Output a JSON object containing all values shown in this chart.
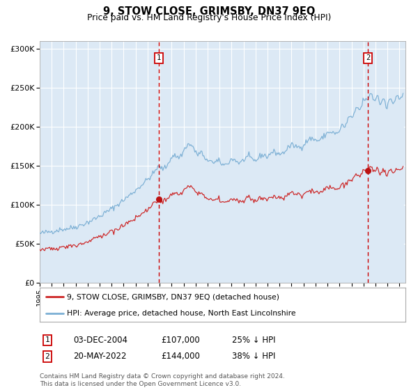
{
  "title": "9, STOW CLOSE, GRIMSBY, DN37 9EQ",
  "subtitle": "Price paid vs. HM Land Registry's House Price Index (HPI)",
  "background_color": "#ffffff",
  "plot_bg_color": "#dce9f5",
  "grid_color": "#ffffff",
  "hpi_color": "#7bafd4",
  "price_color": "#cc2222",
  "marker_color": "#bb1111",
  "vline_color": "#cc0000",
  "ylim": [
    0,
    310000
  ],
  "yticks": [
    0,
    50000,
    100000,
    150000,
    200000,
    250000,
    300000
  ],
  "ytick_labels": [
    "£0",
    "£50K",
    "£100K",
    "£150K",
    "£200K",
    "£250K",
    "£300K"
  ],
  "sale1_date_num": 2004.92,
  "sale1_price": 107000,
  "sale2_date_num": 2022.38,
  "sale2_price": 144000,
  "legend_line1": "9, STOW CLOSE, GRIMSBY, DN37 9EQ (detached house)",
  "legend_line2": "HPI: Average price, detached house, North East Lincolnshire",
  "table_row1_num": "1",
  "table_row1_date": "03-DEC-2004",
  "table_row1_price": "£107,000",
  "table_row1_hpi": "25% ↓ HPI",
  "table_row2_num": "2",
  "table_row2_date": "20-MAY-2022",
  "table_row2_price": "£144,000",
  "table_row2_hpi": "38% ↓ HPI",
  "footnote": "Contains HM Land Registry data © Crown copyright and database right 2024.\nThis data is licensed under the Open Government Licence v3.0.",
  "xmin": 1995.0,
  "xmax": 2025.5
}
